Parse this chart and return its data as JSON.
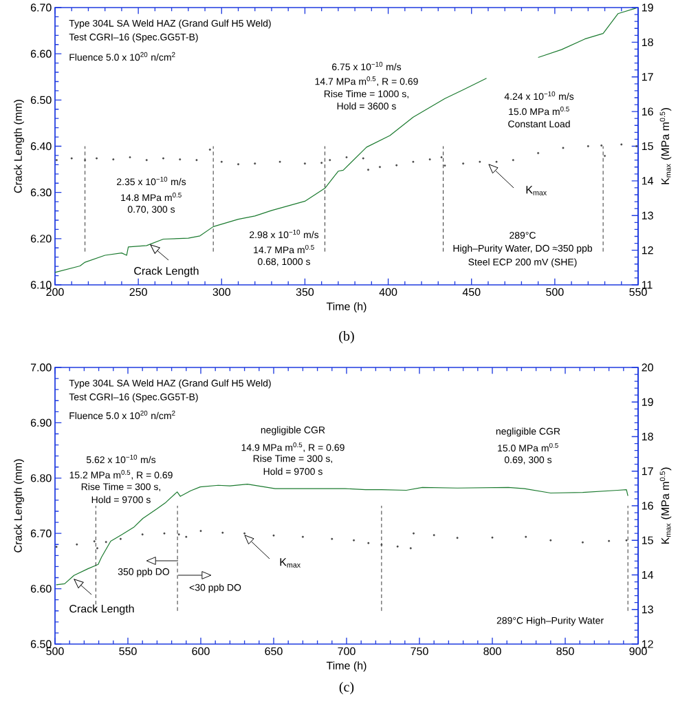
{
  "chart_data": [
    {
      "type": "line",
      "title": "(b)",
      "xlabel": "Time (h)",
      "ylabel": "Crack Length (mm)",
      "y2label": "K$_{max}$ (MPa m$^{0.5}$)",
      "xlim": [
        200,
        550
      ],
      "xticks": [
        200,
        250,
        300,
        350,
        400,
        450,
        500,
        550
      ],
      "ylim": [
        6.1,
        6.7
      ],
      "yticks": [
        {
          "value": 6.1,
          "label": "6.10"
        },
        {
          "value": 6.2,
          "label": "6.20"
        },
        {
          "value": 6.3,
          "label": "6.30"
        },
        {
          "value": 6.4,
          "label": "6.40"
        },
        {
          "value": 6.5,
          "label": "6.50"
        },
        {
          "value": 6.6,
          "label": "6.60"
        },
        {
          "value": 6.7,
          "label": "6.70"
        }
      ],
      "y2lim": [
        11,
        19
      ],
      "y2ticks": [
        11,
        12,
        13,
        14,
        15,
        16,
        17,
        18,
        19
      ],
      "series": [
        {
          "name": "Crack Length",
          "color": "#1a7a2e",
          "x": [
            200,
            215,
            218,
            230,
            240,
            243,
            244,
            255,
            265,
            280,
            287,
            295,
            310,
            320,
            330,
            340,
            350,
            362,
            370,
            373,
            387,
            401,
            415,
            434,
            445,
            459,
            475,
            490,
            504,
            518,
            529,
            538,
            549
          ],
          "values": [
            6.127,
            6.141,
            6.149,
            6.164,
            6.169,
            6.164,
            6.182,
            6.185,
            6.199,
            6.201,
            6.206,
            6.226,
            6.242,
            6.249,
            6.261,
            6.271,
            6.281,
            6.309,
            6.346,
            6.348,
            6.398,
            6.423,
            6.463,
            6.503,
            6.522,
            6.547,
            null,
            6.592,
            6.609,
            6.632,
            6.644,
            6.687,
            6.699
          ]
        },
        {
          "name": "K$_{max}$",
          "type": "scatter",
          "axis": "y2",
          "color": "#444444",
          "x": [
            201,
            210,
            218,
            225,
            235,
            245,
            255,
            265,
            275,
            285,
            293,
            300,
            310,
            320,
            335,
            350,
            360,
            365,
            375,
            385,
            388,
            395,
            405,
            415,
            425,
            432,
            434,
            445,
            455,
            465,
            475,
            490,
            505,
            520,
            528,
            530,
            540,
            549
          ],
          "values": [
            14.6,
            14.65,
            14.6,
            14.65,
            14.62,
            14.68,
            14.6,
            14.65,
            14.62,
            14.6,
            14.9,
            14.55,
            14.48,
            14.5,
            14.55,
            14.5,
            14.52,
            14.6,
            14.68,
            14.65,
            14.32,
            14.4,
            14.45,
            14.55,
            14.62,
            14.68,
            14.44,
            14.5,
            14.55,
            14.55,
            14.6,
            14.8,
            14.95,
            15.0,
            15.02,
            14.72,
            15.05,
            15.0
          ]
        }
      ],
      "ref_lines": [
        {
          "axis": "x",
          "value": 218,
          "line_style": "dashed"
        },
        {
          "axis": "x",
          "value": 295,
          "line_style": "dashed"
        },
        {
          "axis": "x",
          "value": 362,
          "line_style": "dashed"
        },
        {
          "axis": "x",
          "value": 433,
          "line_style": "dashed"
        },
        {
          "axis": "x",
          "value": 529,
          "line_style": "dashed"
        }
      ],
      "annotations": [
        "Type 304L SA Weld HAZ (Grand Gulf H5 Weld)",
        "Test CGRI–16 (Spec.GG5T-B)",
        "Fluence 5.0 x 10$^{20}$ n/cm$^{2}$",
        "2.35 x 10$^{−10}$ m/s",
        "14.8 MPa m$^{0.5}$",
        "0.70, 300 s",
        "2.98 x 10$^{−10}$ m/s",
        "14.7 MPa m$^{0.5}$",
        "0.68, 1000 s",
        "6.75 x 10$^{−10}$ m/s",
        "14.7 MPa m$^{0.5}$, R = 0.69",
        "Rise Time = 1000 s,",
        "Hold = 3600 s",
        "4.24 x 10$^{−10}$ m/s",
        "15.0 MPa m$^{0.5}$",
        "Constant Load",
        "289°C",
        "High–Purity Water, DO ≈350 ppb",
        "Steel ECP 200 mV (SHE)"
      ]
    },
    {
      "type": "line",
      "title": "(c)",
      "xlabel": "Time (h)",
      "ylabel": "Crack Length (mm)",
      "y2label": "K$_{max}$ (MPa m$^{0.5}$)",
      "xlim": [
        500,
        900
      ],
      "xticks": [
        500,
        550,
        600,
        650,
        700,
        750,
        800,
        850,
        900
      ],
      "ylim": [
        6.5,
        7.0
      ],
      "yticks": [
        {
          "value": 6.5,
          "label": "6.50"
        },
        {
          "value": 6.6,
          "label": "6.60"
        },
        {
          "value": 6.7,
          "label": "6.70"
        },
        {
          "value": 6.8,
          "label": "6.80"
        },
        {
          "value": 6.9,
          "label": "6.90"
        },
        {
          "value": 7.0,
          "label": "7.00"
        }
      ],
      "y2lim": [
        12,
        20
      ],
      "y2ticks": [
        12,
        13,
        14,
        15,
        16,
        17,
        18,
        19,
        20
      ],
      "series": [
        {
          "name": "Crack Length",
          "color": "#1a7a2e",
          "x": [
            500.8,
            506.6,
            513,
            522.5,
            529.6,
            531.9,
            538.2,
            546,
            554,
            560.2,
            569.7,
            576,
            583.8,
            586,
            593,
            599.6,
            612,
            620,
            632,
            651,
            675,
            699,
            713,
            724,
            741,
            752,
            776,
            811,
            822,
            840,
            862,
            886,
            892,
            893
          ],
          "values": [
            6.607,
            6.609,
            6.624,
            6.636,
            6.644,
            6.657,
            6.686,
            6.698,
            6.711,
            6.727,
            6.744,
            6.756,
            6.775,
            6.767,
            6.777,
            6.784,
            6.787,
            6.786,
            6.789,
            6.781,
            6.781,
            6.781,
            6.779,
            6.779,
            6.778,
            6.783,
            6.782,
            6.783,
            6.781,
            6.773,
            6.774,
            6.778,
            6.779,
            6.768
          ]
        },
        {
          "name": "K$_{max}$",
          "type": "scatter",
          "axis": "y2",
          "color": "#444444",
          "x": [
            501,
            515,
            527,
            529,
            535,
            545,
            560,
            575,
            585,
            590,
            600,
            615,
            630,
            650,
            670,
            690,
            705,
            715,
            724,
            735,
            744,
            746,
            760,
            776,
            800,
            823,
            840,
            862,
            880,
            892
          ],
          "values": [
            14.81,
            14.88,
            14.97,
            14.77,
            14.95,
            15.04,
            15.17,
            15.2,
            15.17,
            15.1,
            15.27,
            15.22,
            15.2,
            15.14,
            15.1,
            15.04,
            15.0,
            14.92,
            14.87,
            14.82,
            14.77,
            15.2,
            15.15,
            15.07,
            15.08,
            15.1,
            15.0,
            14.94,
            14.98,
            15.0
          ]
        }
      ],
      "ref_lines": [
        {
          "axis": "x",
          "value": 528,
          "line_style": "dashed"
        },
        {
          "axis": "x",
          "value": 584,
          "line_style": "dashed"
        },
        {
          "axis": "x",
          "value": 724,
          "line_style": "dashed"
        },
        {
          "axis": "x",
          "value": 893,
          "line_style": "dashed"
        }
      ],
      "annotations": [
        "Type 304L SA Weld HAZ (Grand Gulf H5 Weld)",
        "Test CGRI–16 (Spec.GG5T-B)",
        "Fluence 5.0 x 10$^{20}$ n/cm$^{2}$",
        "5.62 x 10$^{−10}$ m/s",
        "15.2 MPa m$^{0.5}$, R = 0.69",
        "Rise Time = 300 s,",
        "Hold = 9700 s",
        "negligible CGR",
        "14.9 MPa m$^{0.5}$, R = 0.69",
        "Rise Time = 300 s,",
        "Hold = 9700 s",
        "negligible CGR",
        "15.0 MPa m$^{0.5}$",
        "0.69, 300 s",
        "350 ppb DO",
        "<30 ppb DO",
        "289°C High–Purity Water"
      ]
    }
  ]
}
